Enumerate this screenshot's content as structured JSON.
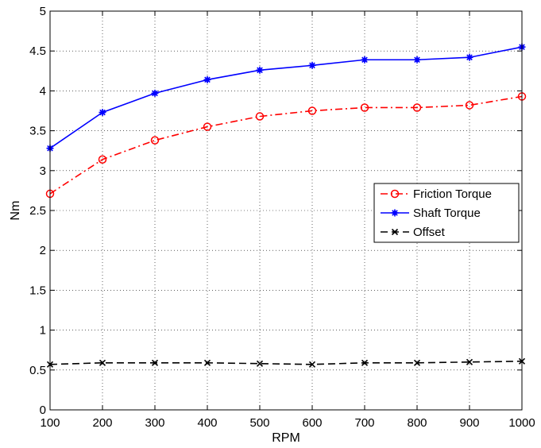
{
  "chart_data": {
    "type": "line",
    "title": "",
    "xlabel": "RPM",
    "ylabel": "Nm",
    "xlim": [
      100,
      1000
    ],
    "ylim": [
      0,
      5
    ],
    "grid": true,
    "legend_position": "right",
    "x_ticks": [
      100,
      200,
      300,
      400,
      500,
      600,
      700,
      800,
      900,
      1000
    ],
    "y_ticks": [
      "0",
      "0.5",
      "1",
      "1.5",
      "2",
      "2.5",
      "3",
      "3.5",
      "4",
      "4.5",
      "5"
    ],
    "x": [
      100,
      200,
      300,
      400,
      500,
      600,
      700,
      800,
      900,
      1000
    ],
    "series": [
      {
        "name": "Friction Torque",
        "color": "#ff0000",
        "line_style": "dash-dot",
        "marker": "circle",
        "values": [
          2.71,
          3.14,
          3.38,
          3.55,
          3.68,
          3.75,
          3.79,
          3.79,
          3.82,
          3.93
        ]
      },
      {
        "name": "Shaft Torque",
        "color": "#0000ff",
        "line_style": "solid",
        "marker": "star",
        "values": [
          3.28,
          3.73,
          3.97,
          4.14,
          4.26,
          4.32,
          4.39,
          4.39,
          4.42,
          4.55
        ]
      },
      {
        "name": "Offset",
        "color": "#000000",
        "line_style": "dashed",
        "marker": "x",
        "values": [
          0.57,
          0.59,
          0.59,
          0.59,
          0.58,
          0.57,
          0.59,
          0.59,
          0.6,
          0.61
        ]
      }
    ]
  }
}
